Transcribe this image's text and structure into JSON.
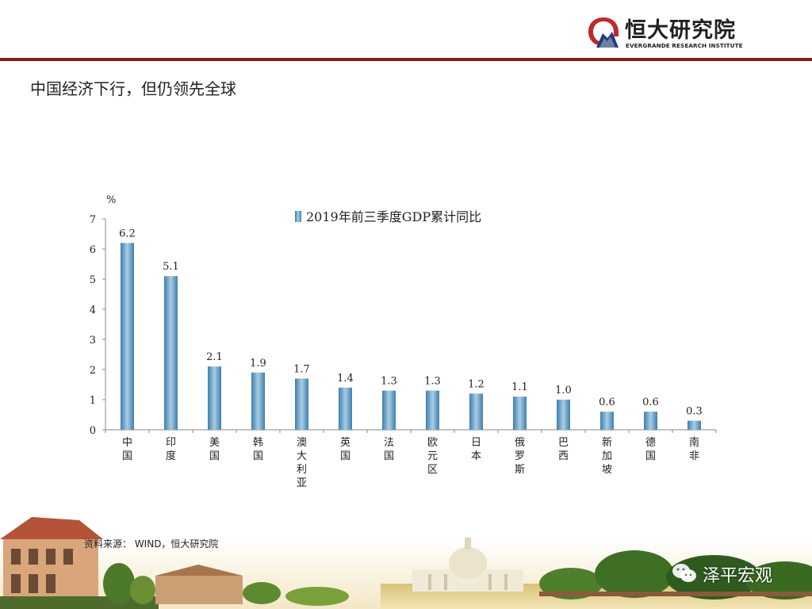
{
  "brand": {
    "name_cn": "恒大研究院",
    "name_en": "EVERGRANDE RESEARCH INSTITUTE"
  },
  "slide": {
    "title": "中国经济下行，但仍领先全球",
    "source": "资料来源： WIND，恒大研究院"
  },
  "watermark": {
    "text": "泽平宏观",
    "icon": "wechat-icon"
  },
  "colors": {
    "accent": "#8b1a1a",
    "bar_light": "#a9cde3",
    "bar_dark": "#3d7fae",
    "logo_red": "#c0282f",
    "logo_navy": "#1f3d7a"
  },
  "chart_data": {
    "type": "bar",
    "unit": "%",
    "series": [
      {
        "name": "2019年前三季度GDP累计同比",
        "values": [
          6.2,
          5.1,
          2.1,
          1.9,
          1.7,
          1.4,
          1.3,
          1.3,
          1.2,
          1.1,
          1.0,
          0.6,
          0.6,
          0.3
        ]
      }
    ],
    "categories": [
      "中国",
      "印度",
      "美国",
      "韩国",
      "澳大利亚",
      "英国",
      "法国",
      "欧元区",
      "日本",
      "俄罗斯",
      "巴西",
      "新加坡",
      "德国",
      "南非"
    ],
    "data_labels": [
      "6.2",
      "5.1",
      "2.1",
      "1.9",
      "1.7",
      "1.4",
      "1.3",
      "1.3",
      "1.2",
      "1.1",
      "1.0",
      "0.6",
      "0.6",
      "0.3"
    ],
    "y_ticks": [
      "0",
      "1",
      "2",
      "3",
      "4",
      "5",
      "6",
      "7"
    ],
    "ylim": [
      0,
      7
    ],
    "grid": false,
    "legend_position": "top-center"
  }
}
